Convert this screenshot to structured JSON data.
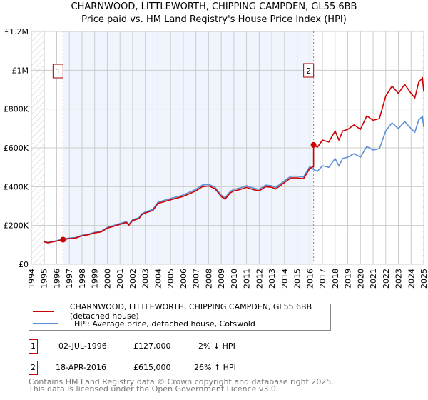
{
  "chart_data": {
    "type": "line",
    "title": "CHARNWOOD, LITTLEWORTH, CHIPPING CAMPDEN, GL55 6BB",
    "subtitle": "Price paid vs. HM Land Registry's House Price Index (HPI)",
    "xlim": [
      1994,
      2025
    ],
    "ylim": [
      0,
      1200000
    ],
    "x_ticks": [
      "1994",
      "1995",
      "1996",
      "1997",
      "1998",
      "1999",
      "2000",
      "2001",
      "2002",
      "2003",
      "2004",
      "2005",
      "2006",
      "2007",
      "2008",
      "2009",
      "2010",
      "2011",
      "2012",
      "2013",
      "2014",
      "2015",
      "2016",
      "2017",
      "2018",
      "2019",
      "2020",
      "2021",
      "2022",
      "2023",
      "2024",
      "2025"
    ],
    "y_ticks": [
      {
        "v": 0,
        "label": "£0"
      },
      {
        "v": 200000,
        "label": "£200K"
      },
      {
        "v": 400000,
        "label": "£400K"
      },
      {
        "v": 600000,
        "label": "£600K"
      },
      {
        "v": 800000,
        "label": "£800K"
      },
      {
        "v": 1000000,
        "label": "£1M"
      },
      {
        "v": 1200000,
        "label": "£1.2M"
      }
    ],
    "grid": true,
    "series": [
      {
        "name": "HPI: Average price, detached house, Cotswold",
        "color": "#5b8fd6",
        "x": [
          1995,
          1995.3,
          1996,
          1996.5,
          1997,
          1997.5,
          1998,
          1998.5,
          1999,
          1999.5,
          2000,
          2000.5,
          2001,
          2001.5,
          2001.7,
          2002,
          2002.5,
          2002.7,
          2003,
          2003.6,
          2004,
          2005,
          2006,
          2007,
          2007.5,
          2008,
          2008.5,
          2009,
          2009.3,
          2009.7,
          2010,
          2010.5,
          2011,
          2011.5,
          2012,
          2012.5,
          2013,
          2013.3,
          2014,
          2014.5,
          2015,
          2015.5,
          2016,
          2016.3,
          2016.6,
          2017,
          2017.5,
          2018,
          2018.3,
          2018.6,
          2019,
          2019.5,
          2020,
          2020.5,
          2021,
          2021.5,
          2022,
          2022.5,
          2023,
          2023.5,
          2024,
          2024.3,
          2024.6,
          2024.9,
          2025
        ],
        "y": [
          118000,
          113000,
          122000,
          130000,
          135000,
          138000,
          150000,
          155000,
          165000,
          170000,
          190000,
          200000,
          210000,
          220000,
          205000,
          230000,
          240000,
          260000,
          270000,
          283000,
          320000,
          339000,
          357000,
          386000,
          408000,
          412000,
          398000,
          357000,
          342000,
          375000,
          386000,
          393000,
          405000,
          393000,
          386000,
          408000,
          405000,
          396000,
          430000,
          454000,
          454000,
          450000,
          504000,
          488000,
          479000,
          508000,
          500000,
          545000,
          508000,
          545000,
          552000,
          570000,
          552000,
          607000,
          589000,
          596000,
          688000,
          729000,
          699000,
          736000,
          699000,
          681000,
          744000,
          762000,
          707000
        ]
      },
      {
        "name": "CHARNWOOD, LITTLEWORTH, CHIPPING CAMPDEN, GL55 6BB (detached house)",
        "color": "#cc0000",
        "pre_ratio": 0.98,
        "post_ratio": 1.26,
        "break_year": 2016.3
      }
    ],
    "sales": [
      {
        "id": "1",
        "x": 1996.5,
        "y": 127000,
        "date": "02-JUL-1996",
        "price": "£127,000",
        "delta": "2% ↓ HPI"
      },
      {
        "id": "2",
        "x": 2016.3,
        "y": 615000,
        "date": "18-APR-2016",
        "price": "£615,000",
        "delta": "26% ↑ HPI"
      }
    ],
    "legend": [
      "CHARNWOOD, LITTLEWORTH, CHIPPING CAMPDEN, GL55 6BB (detached house)",
      "HPI: Average price, detached house, Cotswold"
    ],
    "legend_position": "bottom"
  },
  "footer": {
    "line1": "Contains HM Land Registry data © Crown copyright and database right 2025.",
    "line2": "This data is licensed under the Open Government Licence v3.0."
  }
}
